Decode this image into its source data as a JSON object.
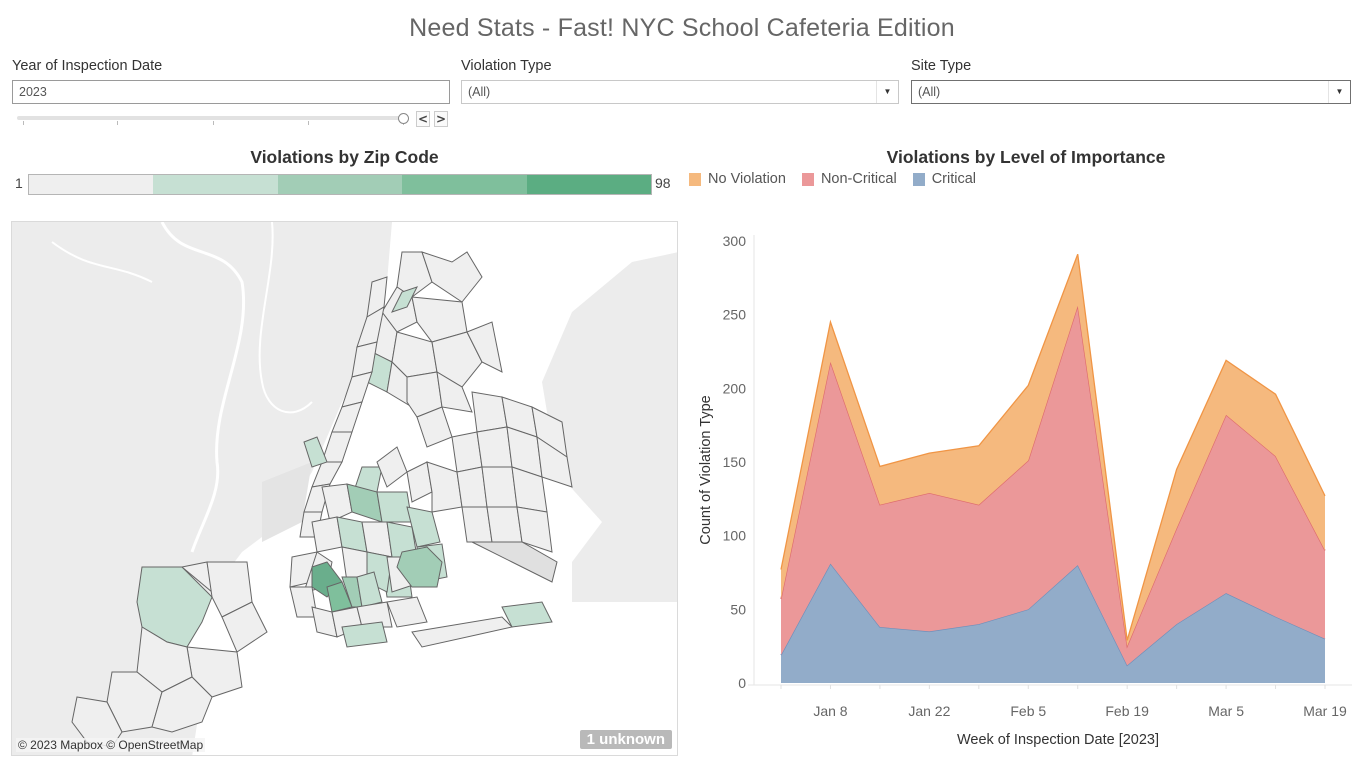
{
  "title": "Need Stats - Fast! NYC School Cafeteria Edition",
  "filters": {
    "year": {
      "label": "Year of Inspection Date",
      "value": "2023"
    },
    "violation_type": {
      "label": "Violation Type",
      "value": "(All)"
    },
    "site_type": {
      "label": "Site Type",
      "value": "(All)"
    },
    "step_prev": "<",
    "step_next": ">"
  },
  "map": {
    "title": "Violations by Zip Code",
    "legend_min": "1",
    "legend_max": "98",
    "color_ramp": [
      "#efefef",
      "#c6e0d3",
      "#a2cdb6",
      "#7fbf9c",
      "#5bad82"
    ],
    "attribution": "© 2023 Mapbox © OpenStreetMap",
    "unknown_badge": "1 unknown"
  },
  "chart_data": {
    "type": "area",
    "stacked": true,
    "title": "Violations by Level of Importance",
    "xlabel": "Week of Inspection Date [2023]",
    "ylabel": "Count of Violation Type",
    "ylim": [
      0,
      300
    ],
    "yticks": [
      0,
      50,
      100,
      150,
      200,
      250,
      300
    ],
    "x": [
      "Jan 1",
      "Jan 8",
      "Jan 15",
      "Jan 22",
      "Jan 29",
      "Feb 5",
      "Feb 12",
      "Feb 19",
      "Feb 26",
      "Mar 5",
      "Mar 12",
      "Mar 19"
    ],
    "xtick_labels": [
      "Jan 8",
      "Jan 22",
      "Feb 5",
      "Feb 19",
      "Mar 5",
      "Mar 19"
    ],
    "legend_position": "top-left",
    "series": [
      {
        "name": "Critical",
        "color": "#92acc9",
        "line": "#6e8fbb",
        "values": [
          19,
          81,
          38,
          35,
          40,
          50,
          80,
          12,
          40,
          61,
          45,
          30
        ]
      },
      {
        "name": "Non-Critical",
        "color": "#eb9899",
        "line": "#de6b6d",
        "values": [
          38,
          137,
          83,
          94,
          81,
          101,
          176,
          13,
          65,
          121,
          109,
          60
        ]
      },
      {
        "name": "No Violation",
        "color": "#f5b97e",
        "line": "#f09545",
        "values": [
          20,
          27,
          26,
          27,
          40,
          51,
          35,
          4,
          40,
          37,
          42,
          37
        ]
      }
    ],
    "legend_order": [
      "No Violation",
      "Non-Critical",
      "Critical"
    ]
  }
}
